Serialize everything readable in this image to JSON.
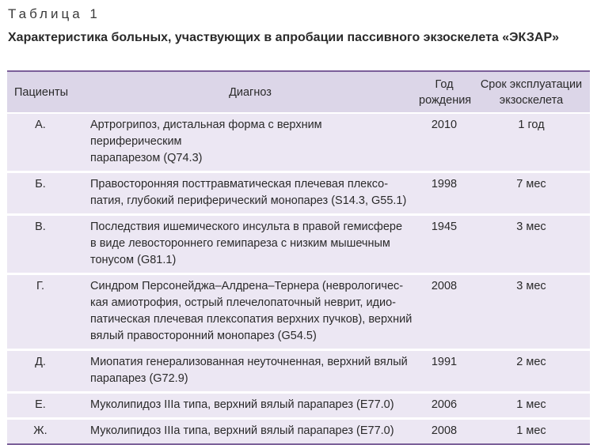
{
  "caption": {
    "label": "Таблица 1",
    "title": "Характеристика больных, участвующих в апробации пассивного экзоскелета «ЭКЗАР»"
  },
  "table": {
    "headers": {
      "patient": "Пациенты",
      "diagnosis": "Диагноз",
      "year_line1": "Год",
      "year_line2": "рождения",
      "term_line1": "Срок эксплуатации",
      "term_line2": "экзоскелета"
    },
    "rows": [
      {
        "patient": "А.",
        "diagnosis": [
          "Артрогрипоз, дистальная форма с верхним периферическим",
          "парапарезом (Q74.3)"
        ],
        "year": "2010",
        "term": "1 год"
      },
      {
        "patient": "Б.",
        "diagnosis": [
          "Правосторонняя посттравматическая плечевая плексо-",
          "патия, глубокий периферический монопарез (S14.3, G55.1)"
        ],
        "year": "1998",
        "term": "7 мес"
      },
      {
        "patient": "В.",
        "diagnosis": [
          "Последствия ишемического инсульта в правой гемисфере",
          "в виде левостороннего гемипареза с низким мышечным",
          "тонусом (G81.1)"
        ],
        "year": "1945",
        "term": "3 мес"
      },
      {
        "patient": "Г.",
        "diagnosis": [
          "Синдром Персонейджа–Алдрена–Тернера (неврологичес-",
          "кая амиотрофия, острый плечелопаточный неврит, идио-",
          "патическая плечевая плексопатия верхних пучков), верхний",
          "вялый правосторонний монопарез (G54.5)"
        ],
        "year": "2008",
        "term": "3 мес"
      },
      {
        "patient": "Д.",
        "diagnosis": [
          "Миопатия генерализованная неуточненная, верхний вялый",
          "парапарез (G72.9)"
        ],
        "year": "1991",
        "term": "2 мес"
      },
      {
        "patient": "Е.",
        "diagnosis": [
          "Муколипидоз IIIa типа, верхний вялый парапарез (E77.0)"
        ],
        "year": "2006",
        "term": "1 мес"
      },
      {
        "patient": "Ж.",
        "diagnosis": [
          "Муколипидоз IIIa типа, верхний вялый парапарез (E77.0)"
        ],
        "year": "2008",
        "term": "1 мес"
      }
    ]
  }
}
